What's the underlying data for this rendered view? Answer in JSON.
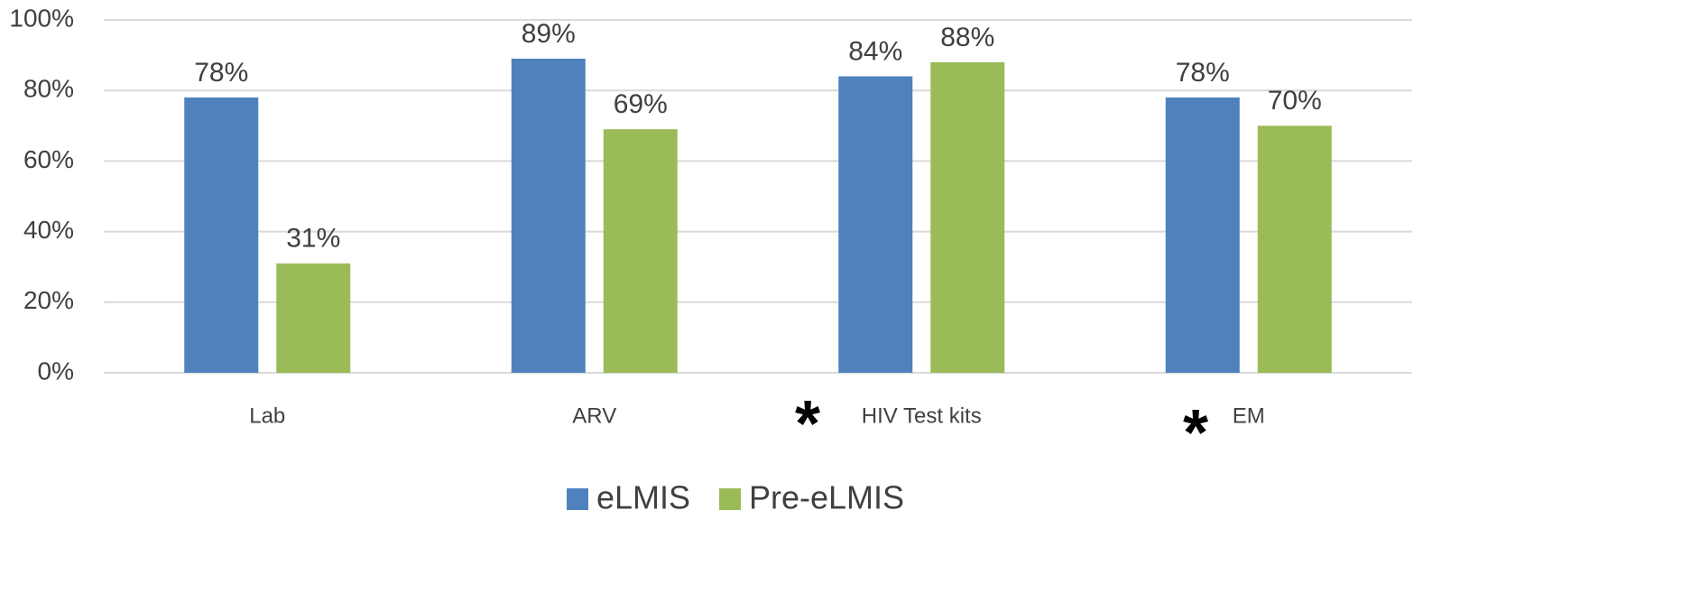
{
  "chart_data": {
    "type": "bar",
    "categories": [
      "Lab",
      "ARV",
      "HIV Test kits",
      "EM"
    ],
    "series": [
      {
        "name": "eLMIS",
        "color": "#4f81bd",
        "values": [
          78,
          89,
          84,
          78
        ],
        "value_labels": [
          "78%",
          "89%",
          "84%",
          "78%"
        ]
      },
      {
        "name": "Pre-eLMIS",
        "color": "#9bbb59",
        "values": [
          31,
          69,
          88,
          70
        ],
        "value_labels": [
          "31%",
          "69%",
          "88%",
          "70%"
        ]
      }
    ],
    "ylim": [
      0,
      100
    ],
    "yticks": [
      {
        "value": 0,
        "label": "0%"
      },
      {
        "value": 20,
        "label": "20%"
      },
      {
        "value": 40,
        "label": "40%"
      },
      {
        "value": 60,
        "label": "60%"
      },
      {
        "value": 80,
        "label": "80%"
      },
      {
        "value": 100,
        "label": "100%"
      }
    ],
    "grid": true,
    "legend": "bottom",
    "annotations": [
      "*",
      "*"
    ]
  }
}
